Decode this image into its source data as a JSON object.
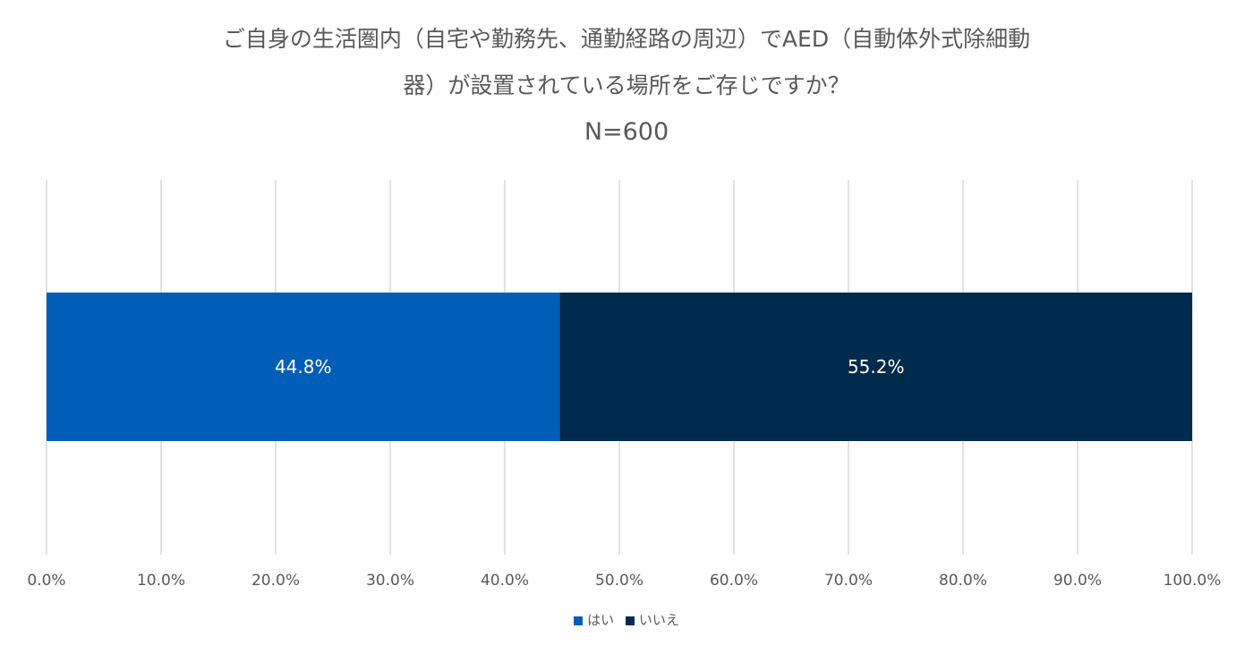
{
  "chart_data": {
    "type": "bar",
    "orientation": "horizontal",
    "stacked": true,
    "title_lines": [
      "ご自身の生活圏内（自宅や勤務先、通勤経路の周辺）でAED（自動体外式除細動",
      "器）が設置されている場所をご存じですか？"
    ],
    "subtitle": "N=600",
    "categories": [
      ""
    ],
    "series": [
      {
        "name": "はい",
        "values": [
          44.8
        ],
        "label": "44.8%",
        "color": "#005EB8"
      },
      {
        "name": "いいえ",
        "values": [
          55.2
        ],
        "label": "55.2%",
        "color": "#002B4D"
      }
    ],
    "xlim": [
      0,
      100
    ],
    "x_ticks": [
      "0.0%",
      "10.0%",
      "20.0%",
      "30.0%",
      "40.0%",
      "50.0%",
      "60.0%",
      "70.0%",
      "80.0%",
      "90.0%",
      "100.0%"
    ],
    "grid": true,
    "legend_position": "bottom"
  }
}
